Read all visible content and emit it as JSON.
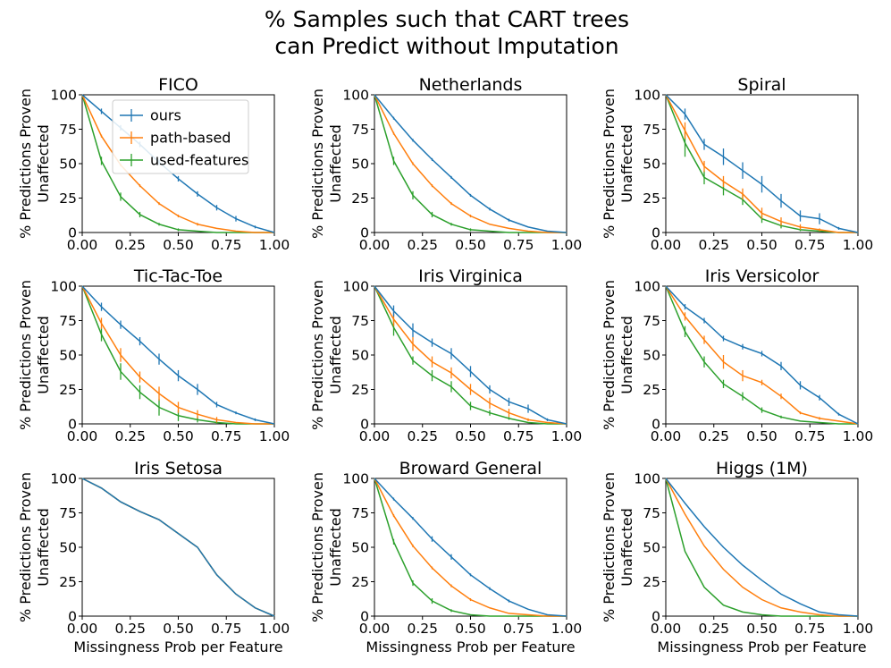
{
  "figure": {
    "title_line1": "% Samples such that CART trees",
    "title_line2": "can Predict without Imputation"
  },
  "colors": {
    "ours": "#1f77b4",
    "path": "#ff7f0e",
    "used": "#2ca02c"
  },
  "chart_data": [
    {
      "type": "line",
      "title": "FICO",
      "xlabel": "",
      "ylabel_line1": "% Predictions Proven",
      "ylabel_line2": "Unaffected",
      "xlim": [
        0,
        1
      ],
      "ylim": [
        0,
        100
      ],
      "xticks": [
        "0.00",
        "0.25",
        "0.50",
        "0.75",
        "1.00"
      ],
      "yticks": [
        "0",
        "25",
        "50",
        "75",
        "100"
      ],
      "legend": [
        "ours",
        "path-based",
        "used-features"
      ],
      "x": [
        0,
        0.1,
        0.2,
        0.3,
        0.4,
        0.5,
        0.6,
        0.7,
        0.8,
        0.9,
        1.0
      ],
      "series": [
        {
          "name": "ours",
          "values": [
            100,
            88,
            76,
            64,
            51,
            39,
            28,
            18,
            10,
            4,
            0
          ],
          "err": [
            0,
            2,
            2,
            2,
            2,
            2,
            2,
            2,
            2,
            1,
            0
          ]
        },
        {
          "name": "path-based",
          "values": [
            100,
            70,
            49,
            34,
            21,
            12,
            6,
            3,
            1,
            0,
            0
          ],
          "err": [
            0,
            1,
            1,
            1,
            1,
            1,
            1,
            0,
            0,
            0,
            0
          ]
        },
        {
          "name": "used-features",
          "values": [
            100,
            52,
            26,
            13,
            6,
            2,
            1,
            0,
            0,
            0,
            0
          ],
          "err": [
            0,
            3,
            3,
            2,
            1,
            1,
            0,
            0,
            0,
            0,
            0
          ]
        }
      ]
    },
    {
      "type": "line",
      "title": "Netherlands",
      "xlabel": "",
      "ylabel_line1": "% Predictions Proven",
      "ylabel_line2": "Unaffected",
      "xlim": [
        0,
        1
      ],
      "ylim": [
        0,
        100
      ],
      "xticks": [
        "0.00",
        "0.25",
        "0.50",
        "0.75",
        "1.00"
      ],
      "yticks": [
        "0",
        "25",
        "50",
        "75",
        "100"
      ],
      "x": [
        0,
        0.1,
        0.2,
        0.3,
        0.4,
        0.5,
        0.6,
        0.7,
        0.8,
        0.9,
        1.0
      ],
      "series": [
        {
          "name": "ours",
          "values": [
            100,
            83,
            67,
            53,
            40,
            27,
            17,
            9,
            4,
            1,
            0
          ],
          "err": [
            0,
            1,
            1,
            1,
            1,
            1,
            1,
            1,
            0,
            0,
            0
          ]
        },
        {
          "name": "path-based",
          "values": [
            100,
            72,
            50,
            34,
            21,
            12,
            6,
            3,
            1,
            0,
            0
          ],
          "err": [
            0,
            1,
            1,
            1,
            1,
            1,
            0,
            0,
            0,
            0,
            0
          ]
        },
        {
          "name": "used-features",
          "values": [
            100,
            52,
            27,
            13,
            6,
            2,
            1,
            0,
            0,
            0,
            0
          ],
          "err": [
            0,
            3,
            3,
            2,
            1,
            1,
            0,
            0,
            0,
            0,
            0
          ]
        }
      ]
    },
    {
      "type": "line",
      "title": "Spiral",
      "xlabel": "",
      "ylabel_line1": "% Predictions Proven",
      "ylabel_line2": "Unaffected",
      "xlim": [
        0,
        1
      ],
      "ylim": [
        0,
        100
      ],
      "xticks": [
        "0.00",
        "0.25",
        "0.50",
        "0.75",
        "1.00"
      ],
      "yticks": [
        "0",
        "25",
        "50",
        "75",
        "100"
      ],
      "x": [
        0,
        0.1,
        0.2,
        0.3,
        0.4,
        0.5,
        0.6,
        0.7,
        0.8,
        0.9,
        1.0
      ],
      "series": [
        {
          "name": "ours",
          "values": [
            100,
            86,
            64,
            55,
            45,
            35,
            23,
            12,
            10,
            3,
            0
          ],
          "err": [
            0,
            4,
            4,
            6,
            6,
            6,
            5,
            4,
            4,
            1,
            0
          ]
        },
        {
          "name": "path-based",
          "values": [
            100,
            74,
            48,
            37,
            28,
            14,
            8,
            4,
            2,
            0,
            0
          ],
          "err": [
            0,
            6,
            4,
            4,
            4,
            4,
            3,
            2,
            1,
            0,
            0
          ]
        },
        {
          "name": "used-features",
          "values": [
            100,
            65,
            40,
            32,
            24,
            10,
            5,
            2,
            1,
            0,
            0
          ],
          "err": [
            0,
            10,
            5,
            5,
            4,
            3,
            2,
            1,
            0,
            0,
            0
          ]
        }
      ]
    },
    {
      "type": "line",
      "title": "Tic-Tac-Toe",
      "xlabel": "",
      "ylabel_line1": "% Predictions Proven",
      "ylabel_line2": "Unaffected",
      "xlim": [
        0,
        1
      ],
      "ylim": [
        0,
        100
      ],
      "xticks": [
        "0.00",
        "0.25",
        "0.50",
        "0.75",
        "1.00"
      ],
      "yticks": [
        "0",
        "25",
        "50",
        "75",
        "100"
      ],
      "x": [
        0,
        0.1,
        0.2,
        0.3,
        0.4,
        0.5,
        0.6,
        0.7,
        0.8,
        0.9,
        1.0
      ],
      "series": [
        {
          "name": "ours",
          "values": [
            100,
            85,
            72,
            60,
            47,
            35,
            25,
            14,
            8,
            3,
            0
          ],
          "err": [
            0,
            3,
            3,
            3,
            4,
            4,
            4,
            2,
            1,
            1,
            0
          ]
        },
        {
          "name": "path-based",
          "values": [
            100,
            73,
            50,
            34,
            22,
            12,
            7,
            3,
            1,
            0,
            0
          ],
          "err": [
            0,
            4,
            5,
            4,
            5,
            4,
            3,
            2,
            0,
            0,
            0
          ]
        },
        {
          "name": "used-features",
          "values": [
            100,
            65,
            38,
            23,
            12,
            6,
            3,
            1,
            0,
            0,
            0
          ],
          "err": [
            0,
            5,
            6,
            5,
            6,
            4,
            2,
            1,
            0,
            0,
            0
          ]
        }
      ]
    },
    {
      "type": "line",
      "title": "Iris Virginica",
      "xlabel": "",
      "ylabel_line1": "% Predictions Proven",
      "ylabel_line2": "Unaffected",
      "xlim": [
        0,
        1
      ],
      "ylim": [
        0,
        100
      ],
      "xticks": [
        "0.00",
        "0.25",
        "0.50",
        "0.75",
        "1.00"
      ],
      "yticks": [
        "0",
        "25",
        "50",
        "75",
        "100"
      ],
      "x": [
        0,
        0.1,
        0.2,
        0.3,
        0.4,
        0.5,
        0.6,
        0.7,
        0.8,
        0.9,
        1.0
      ],
      "series": [
        {
          "name": "ours",
          "values": [
            100,
            82,
            68,
            59,
            51,
            38,
            25,
            16,
            11,
            3,
            0
          ],
          "err": [
            0,
            4,
            5,
            3,
            4,
            4,
            3,
            3,
            3,
            1,
            0
          ]
        },
        {
          "name": "path-based",
          "values": [
            100,
            76,
            58,
            45,
            37,
            25,
            15,
            8,
            3,
            1,
            0
          ],
          "err": [
            0,
            5,
            5,
            4,
            4,
            4,
            4,
            3,
            1,
            0,
            0
          ]
        },
        {
          "name": "used-features",
          "values": [
            100,
            70,
            46,
            35,
            27,
            13,
            8,
            4,
            1,
            0,
            0
          ],
          "err": [
            0,
            6,
            3,
            4,
            4,
            3,
            2,
            1,
            0,
            0,
            0
          ]
        }
      ]
    },
    {
      "type": "line",
      "title": "Iris Versicolor",
      "xlabel": "",
      "ylabel_line1": "% Predictions Proven",
      "ylabel_line2": "Unaffected",
      "xlim": [
        0,
        1
      ],
      "ylim": [
        0,
        100
      ],
      "xticks": [
        "0.00",
        "0.25",
        "0.50",
        "0.75",
        "1.00"
      ],
      "yticks": [
        "0",
        "25",
        "50",
        "75",
        "100"
      ],
      "x": [
        0,
        0.1,
        0.2,
        0.3,
        0.4,
        0.5,
        0.6,
        0.7,
        0.8,
        0.9,
        1.0
      ],
      "series": [
        {
          "name": "ours",
          "values": [
            100,
            85,
            75,
            62,
            56,
            51,
            42,
            28,
            19,
            7,
            0
          ],
          "err": [
            0,
            2,
            2,
            2,
            2,
            2,
            3,
            3,
            2,
            1,
            0
          ]
        },
        {
          "name": "path-based",
          "values": [
            100,
            78,
            61,
            45,
            35,
            30,
            20,
            8,
            4,
            2,
            0
          ],
          "err": [
            0,
            3,
            3,
            5,
            4,
            2,
            2,
            1,
            1,
            0,
            0
          ]
        },
        {
          "name": "used-features",
          "values": [
            100,
            67,
            45,
            29,
            20,
            10,
            5,
            2,
            1,
            0,
            0
          ],
          "err": [
            0,
            4,
            4,
            3,
            3,
            2,
            1,
            0,
            0,
            0,
            0
          ]
        }
      ]
    },
    {
      "type": "line",
      "title": "Iris Setosa",
      "xlabel": "Missingness Prob per Feature",
      "ylabel_line1": "% Predictions Proven",
      "ylabel_line2": "Unaffected",
      "xlim": [
        0,
        1
      ],
      "ylim": [
        0,
        100
      ],
      "xticks": [
        "0.00",
        "0.25",
        "0.50",
        "0.75",
        "1.00"
      ],
      "yticks": [
        "0",
        "25",
        "50",
        "75",
        "100"
      ],
      "x": [
        0,
        0.1,
        0.2,
        0.3,
        0.4,
        0.5,
        0.6,
        0.7,
        0.8,
        0.9,
        1.0
      ],
      "series": [
        {
          "name": "ours",
          "values": [
            100,
            93,
            83,
            76,
            70,
            60,
            50,
            30,
            16,
            6,
            0
          ],
          "err": [
            0,
            0,
            0,
            0,
            0,
            0,
            0,
            0,
            0,
            0,
            0
          ]
        },
        {
          "name": "path-based",
          "values": [
            100,
            93,
            83,
            76,
            70,
            60,
            50,
            30,
            16,
            6,
            0
          ],
          "err": [
            0,
            0,
            0,
            0,
            0,
            0,
            0,
            0,
            0,
            0,
            0
          ]
        },
        {
          "name": "used-features",
          "values": [
            100,
            93,
            83,
            76,
            70,
            60,
            50,
            30,
            16,
            6,
            0
          ],
          "err": [
            0,
            0,
            0,
            0,
            0,
            0,
            0,
            0,
            0,
            0,
            0
          ]
        }
      ]
    },
    {
      "type": "line",
      "title": "Broward General",
      "xlabel": "Missingness Prob per Feature",
      "ylabel_line1": "% Predictions Proven",
      "ylabel_line2": "Unaffected",
      "xlim": [
        0,
        1
      ],
      "ylim": [
        0,
        100
      ],
      "xticks": [
        "0.00",
        "0.25",
        "0.50",
        "0.75",
        "1.00"
      ],
      "yticks": [
        "0",
        "25",
        "50",
        "75",
        "100"
      ],
      "x": [
        0,
        0.1,
        0.2,
        0.3,
        0.4,
        0.5,
        0.6,
        0.7,
        0.8,
        0.9,
        1.0
      ],
      "series": [
        {
          "name": "ours",
          "values": [
            100,
            85,
            71,
            56,
            43,
            30,
            20,
            11,
            5,
            1,
            0
          ],
          "err": [
            0,
            1,
            1,
            2,
            2,
            1,
            1,
            1,
            0,
            0,
            0
          ]
        },
        {
          "name": "path-based",
          "values": [
            100,
            73,
            51,
            35,
            22,
            12,
            6,
            2,
            1,
            0,
            0
          ],
          "err": [
            0,
            1,
            1,
            1,
            1,
            1,
            0,
            0,
            0,
            0,
            0
          ]
        },
        {
          "name": "used-features",
          "values": [
            100,
            54,
            24,
            11,
            4,
            1,
            0,
            0,
            0,
            0,
            0
          ],
          "err": [
            0,
            2,
            2,
            2,
            1,
            0,
            0,
            0,
            0,
            0,
            0
          ]
        }
      ]
    },
    {
      "type": "line",
      "title": "Higgs (1M)",
      "xlabel": "Missingness Prob per Feature",
      "ylabel_line1": "% Predictions Proven",
      "ylabel_line2": "Unaffected",
      "xlim": [
        0,
        1
      ],
      "ylim": [
        0,
        100
      ],
      "xticks": [
        "0.00",
        "0.25",
        "0.50",
        "0.75",
        "1.00"
      ],
      "yticks": [
        "0",
        "25",
        "50",
        "75",
        "100"
      ],
      "x": [
        0,
        0.1,
        0.2,
        0.3,
        0.4,
        0.5,
        0.6,
        0.7,
        0.8,
        0.9,
        1.0
      ],
      "series": [
        {
          "name": "ours",
          "values": [
            100,
            82,
            65,
            50,
            37,
            26,
            16,
            9,
            3,
            1,
            0
          ],
          "err": [
            0,
            0,
            0,
            0,
            0,
            0,
            0,
            0,
            0,
            0,
            0
          ]
        },
        {
          "name": "path-based",
          "values": [
            100,
            74,
            51,
            34,
            21,
            12,
            6,
            3,
            1,
            0,
            0
          ],
          "err": [
            0,
            0,
            0,
            0,
            0,
            0,
            0,
            0,
            0,
            0,
            0
          ]
        },
        {
          "name": "used-features",
          "values": [
            100,
            47,
            21,
            8,
            3,
            1,
            0,
            0,
            0,
            0,
            0
          ],
          "err": [
            0,
            0,
            0,
            0,
            0,
            0,
            0,
            0,
            0,
            0,
            0
          ]
        }
      ]
    }
  ]
}
